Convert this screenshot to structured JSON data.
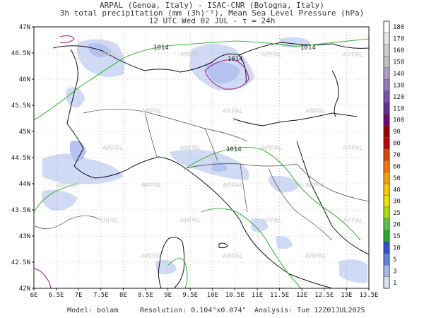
{
  "header": {
    "line1": "ARPAL (Genoa, Italy)  -  ISAC-CNR (Bologna, Italy)",
    "line2": "3h total precipitation (mm (3h)⁻¹), Mean Sea Level Pressure (hPa)",
    "line3": "12 UTC Wed 02 JUL  -  τ = 24h"
  },
  "map": {
    "lon_range": [
      6,
      13.5
    ],
    "lat_range": [
      42,
      47
    ],
    "lon_ticks": [
      "6E",
      "6.5E",
      "7E",
      "7.5E",
      "8E",
      "8.5E",
      "9E",
      "9.5E",
      "10E",
      "10.5E",
      "11E",
      "11.5E",
      "12E",
      "12.5E",
      "13E",
      "13.5E"
    ],
    "lat_ticks": [
      "42N",
      "42.5N",
      "43N",
      "43.5N",
      "44N",
      "44.5N",
      "45N",
      "45.5N",
      "46N",
      "46.5N",
      "47N"
    ],
    "isobar_labels": [
      "1014",
      "1014",
      "1014",
      "1014"
    ],
    "watermark": "ARPAL",
    "colors": {
      "isobar_1014": "#3cb93c",
      "isobar_high": "#b0208c",
      "precip_light": "#c8d4f4",
      "precip_mid": "#a7b9ef"
    }
  },
  "colorbar": {
    "labels": [
      "180",
      "170",
      "160",
      "150",
      "140",
      "130",
      "120",
      "110",
      "100",
      "90",
      "80",
      "70",
      "60",
      "50",
      "40",
      "30",
      "25",
      "20",
      "15",
      "10",
      "5",
      "3",
      "1"
    ],
    "colors": [
      "#ffffff",
      "#e8e8e8",
      "#d0d0d0",
      "#c2c2c2",
      "#b0a0c8",
      "#9878c0",
      "#7850b0",
      "#6030a0",
      "#7a007a",
      "#a00000",
      "#c40000",
      "#e04000",
      "#ff7000",
      "#ff9e00",
      "#ffc800",
      "#e8e800",
      "#a8e000",
      "#58c840",
      "#20b020",
      "#3050d0",
      "#5f82e8",
      "#a7b9ef",
      "#dde4fa"
    ]
  },
  "footer": {
    "model": "Model: bolam",
    "resolution": "Resolution: 0.104°x0.074°",
    "analysis": "Analysis: Tue 12Z01JUL2025"
  }
}
